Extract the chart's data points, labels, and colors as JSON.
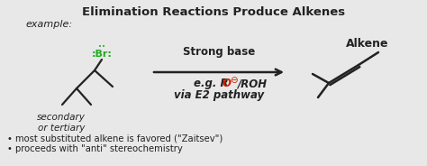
{
  "title": "Elimination Reactions Produce Alkenes",
  "background_color": "#e8e8e8",
  "title_fontsize": 9.5,
  "title_weight": "bold",
  "example_label": "example:",
  "secondary_label": "secondary\nor tertiary",
  "strong_base_label": "Strong base",
  "via_label": "via E2 pathway",
  "alkene_label": "Alkene",
  "bullet1": "• most substituted alkene is favored (\"Zaitsev\")",
  "bullet2": "• proceeds with \"anti\" stereochemistry",
  "green_color": "#22aa22",
  "red_color": "#cc2200",
  "black_color": "#222222",
  "arrow_color": "#222222",
  "figsize": [
    4.74,
    1.84
  ],
  "dpi": 100
}
